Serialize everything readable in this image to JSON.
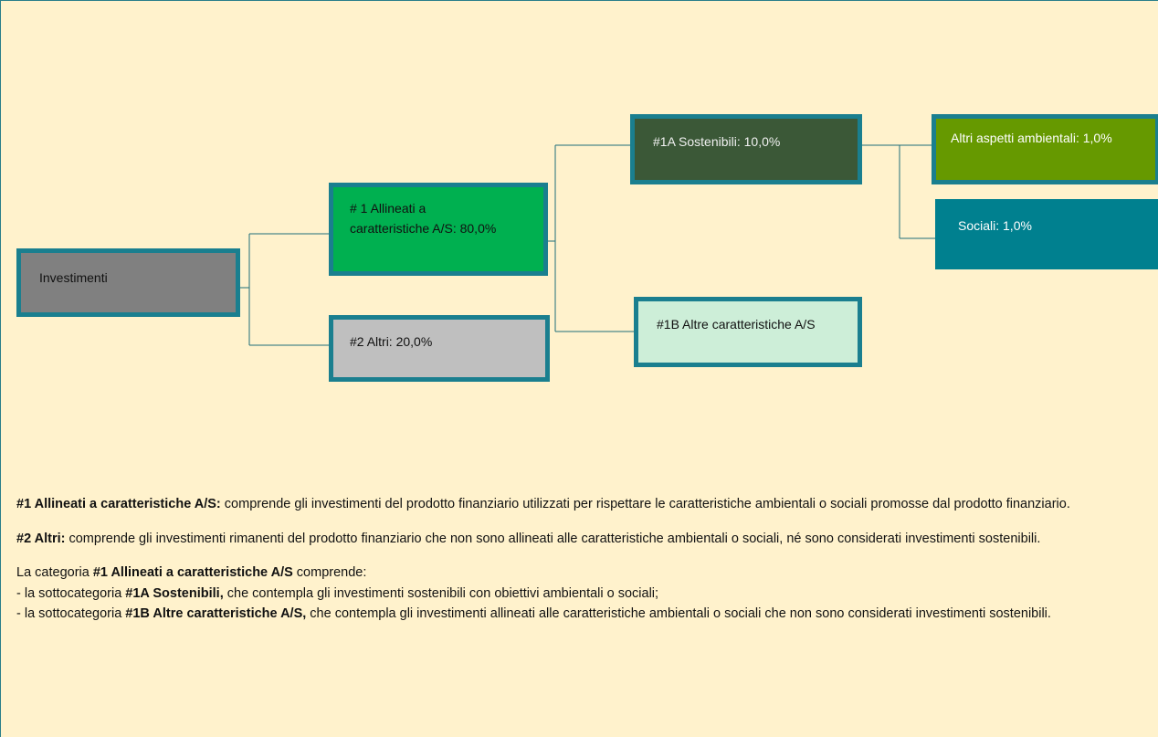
{
  "nodes": [
    {
      "label": "Investimenti"
    },
    {
      "label": "# 1 Allineati a caratteristiche A/S: 80,0%"
    },
    {
      "label": "#2 Altri:  20,0%"
    },
    {
      "label": "#1A Sostenibili:  10,0%"
    },
    {
      "label": "#1B Altre caratteristiche A/S"
    },
    {
      "label": "Altri aspetti ambientali: 1,0%"
    },
    {
      "label": "Sociali: 1,0%"
    }
  ],
  "notes": [
    [
      [
        {
          "text": "#1 Allineati a caratteristiche A/S:",
          "bold": true
        },
        {
          "text": " comprende gli investimenti del prodotto finanziario utilizzati per rispettare le caratteristiche ambientali o sociali promosse dal prodotto finanziario.",
          "bold": false
        }
      ]
    ],
    [
      [
        {
          "text": "#2 Altri:",
          "bold": true
        },
        {
          "text": " comprende gli investimenti rimanenti del prodotto finanziario che non sono allineati alle caratteristiche ambientali o sociali, né sono considerati investimenti sostenibili.",
          "bold": false
        }
      ]
    ],
    [
      [
        {
          "text": "La categoria ",
          "bold": false
        },
        {
          "text": "#1 Allineati a caratteristiche A/S",
          "bold": true
        },
        {
          "text": " comprende:",
          "bold": false
        }
      ],
      [
        {
          "text": "- la sottocategoria ",
          "bold": false
        },
        {
          "text": "#1A Sostenibili,",
          "bold": true
        },
        {
          "text": " che contempla gli investimenti sostenibili con obiettivi ambientali o sociali;",
          "bold": false
        }
      ],
      [
        {
          "text": "- la sottocategoria ",
          "bold": false
        },
        {
          "text": "#1B Altre caratteristiche A/S,",
          "bold": true
        },
        {
          "text": " che contempla gli investimenti allineati alle caratteristiche ambientali o sociali che non sono considerati investimenti sostenibili.",
          "bold": false
        }
      ]
    ]
  ]
}
